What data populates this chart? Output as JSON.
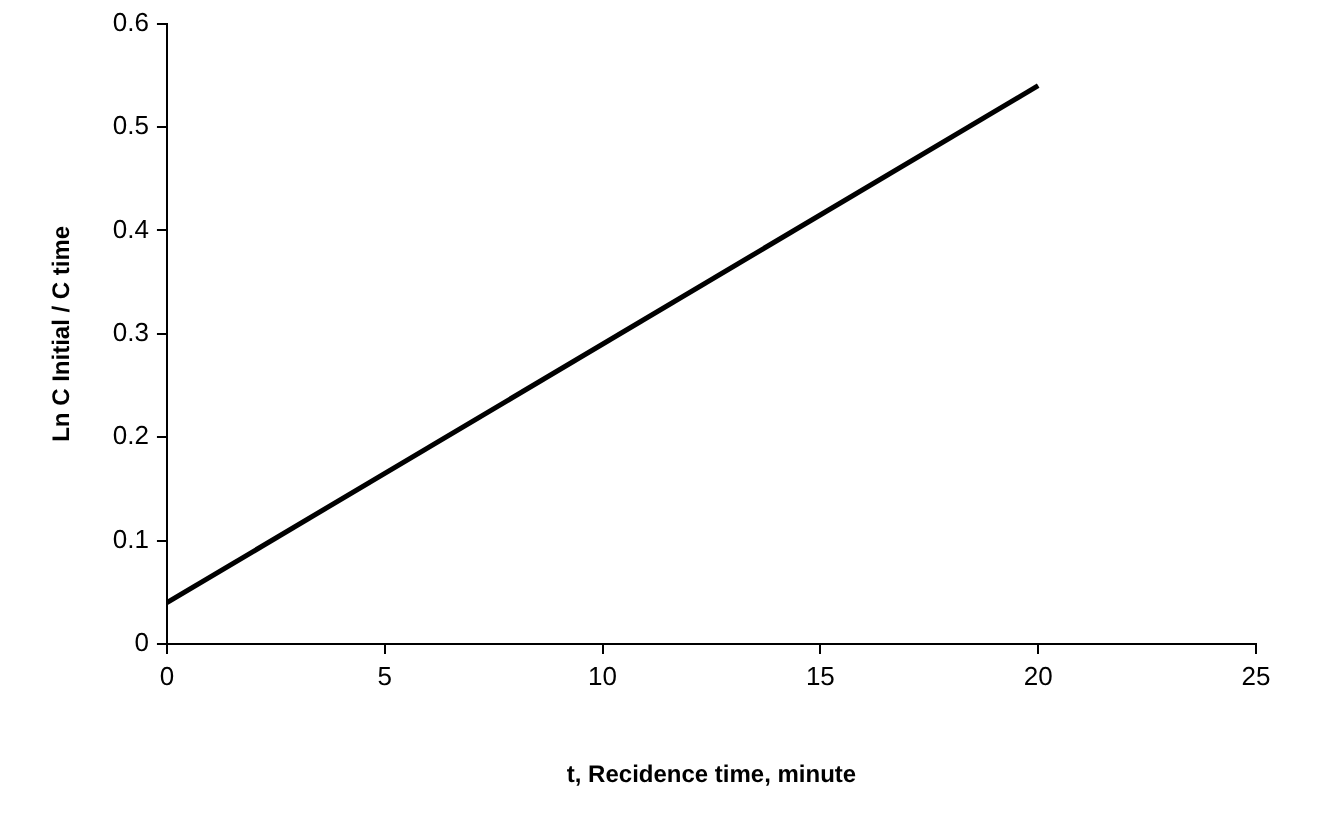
{
  "chart_data": {
    "type": "line",
    "xlabel": "t, Recidence time, minute",
    "ylabel": "Ln C Initial / C time",
    "x": [
      0,
      20
    ],
    "series": [
      {
        "color": "#000000",
        "values": [
          0.04,
          0.54
        ]
      }
    ],
    "xlim": [
      0,
      25
    ],
    "xticks": [
      0,
      5,
      10,
      15,
      20,
      25
    ],
    "ylim": [
      0,
      0.6
    ],
    "yticks": [
      0,
      0.1,
      0.2,
      0.3,
      0.4,
      0.5,
      0.6
    ],
    "grid": false,
    "legend": false,
    "marker": "none",
    "line_style": "solid"
  }
}
